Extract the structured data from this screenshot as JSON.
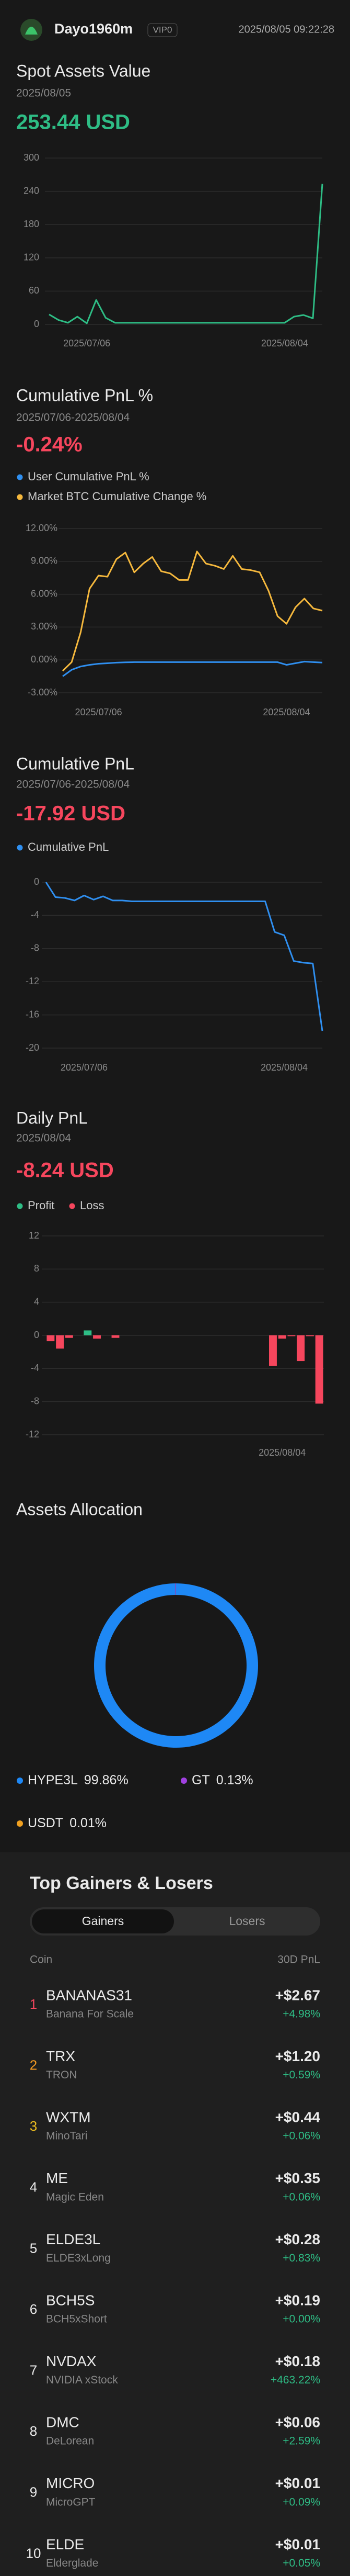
{
  "header": {
    "username": "Dayo1960m",
    "vip": "VIP0",
    "datetime": "2025/08/05 09:22:28"
  },
  "chart_data": [
    {
      "type": "line",
      "title": "Spot Assets Value",
      "subtitle": "2025/08/05",
      "headline": "253.44 USD",
      "headline_color": "#2ebd85",
      "categories": [
        null,
        null,
        null,
        null,
        "2025/07/06",
        null,
        null,
        null,
        null,
        null,
        null,
        null,
        null,
        null,
        null,
        null,
        null,
        null,
        null,
        null,
        null,
        null,
        null,
        null,
        null,
        "2025/08/04",
        null,
        null,
        null,
        null
      ],
      "series": [
        {
          "color": "#2ebd85",
          "values": [
            18,
            8,
            3,
            14,
            2,
            44,
            12,
            3,
            3,
            3,
            3,
            3,
            3,
            3,
            3,
            3,
            3,
            3,
            3,
            3,
            3,
            3,
            3,
            3,
            3,
            3,
            14,
            17,
            11,
            253.44
          ]
        }
      ],
      "ylim": [
        0,
        300
      ],
      "yticks": [
        0,
        60,
        120,
        180,
        240,
        300
      ],
      "grid": true
    },
    {
      "type": "line",
      "title": "Cumulative PnL %",
      "subtitle": "2025/07/06-2025/08/04",
      "headline": "-0.24%",
      "headline_color": "#f6465d",
      "categories": [
        null,
        null,
        null,
        null,
        "2025/07/06",
        null,
        null,
        null,
        null,
        null,
        null,
        null,
        null,
        null,
        null,
        null,
        null,
        null,
        null,
        null,
        null,
        null,
        null,
        null,
        null,
        "2025/08/04",
        null,
        null,
        null,
        null
      ],
      "series": [
        {
          "name": "User Cumulative PnL %",
          "color": "#2f8ff0",
          "values": [
            -1.5,
            -0.9,
            -0.6,
            -0.45,
            -0.35,
            -0.3,
            -0.25,
            -0.22,
            -0.2,
            -0.2,
            -0.2,
            -0.2,
            -0.2,
            -0.2,
            -0.2,
            -0.2,
            -0.2,
            -0.2,
            -0.2,
            -0.2,
            -0.2,
            -0.2,
            -0.2,
            -0.2,
            -0.2,
            -0.45,
            -0.3,
            -0.15,
            -0.2,
            -0.24
          ]
        },
        {
          "name": "Market BTC Cumulative Change %",
          "color": "#f5b83d",
          "values": [
            -1.0,
            -0.2,
            2.5,
            6.5,
            7.7,
            7.6,
            9.2,
            9.8,
            8.0,
            8.8,
            9.4,
            8.1,
            7.9,
            7.3,
            7.3,
            9.9,
            8.8,
            8.6,
            8.3,
            9.5,
            8.3,
            8.2,
            8.0,
            6.3,
            4.0,
            3.3,
            4.8,
            5.6,
            4.7,
            4.5
          ]
        }
      ],
      "ylim": [
        -3,
        12
      ],
      "yticks": [
        {
          "value": 12,
          "label": "12.00%"
        },
        {
          "value": 9,
          "label": "9.00%"
        },
        {
          "value": 6,
          "label": "6.00%"
        },
        {
          "value": 3,
          "label": "3.00%"
        },
        {
          "value": 0,
          "label": "0.00%"
        },
        {
          "value": -3,
          "label": "-3.00%"
        }
      ],
      "grid": true
    },
    {
      "type": "line",
      "title": "Cumulative PnL",
      "subtitle": "2025/07/06-2025/08/04",
      "headline": "-17.92 USD",
      "headline_color": "#f6465d",
      "categories": [
        null,
        null,
        null,
        null,
        "2025/07/06",
        null,
        null,
        null,
        null,
        null,
        null,
        null,
        null,
        null,
        null,
        null,
        null,
        null,
        null,
        null,
        null,
        null,
        null,
        null,
        null,
        "2025/08/04",
        null,
        null,
        null,
        null
      ],
      "series": [
        {
          "name": "Cumulative PnL",
          "color": "#2f8ff0",
          "values": [
            0,
            -1.8,
            -1.9,
            -2.2,
            -1.6,
            -2.1,
            -1.7,
            -2.2,
            -2.2,
            -2.3,
            -2.3,
            -2.3,
            -2.3,
            -2.3,
            -2.3,
            -2.3,
            -2.3,
            -2.3,
            -2.3,
            -2.3,
            -2.3,
            -2.3,
            -2.3,
            -2.3,
            -6.0,
            -6.4,
            -9.5,
            -9.7,
            -9.8,
            -17.92
          ]
        }
      ],
      "ylim": [
        -20,
        0
      ],
      "yticks": [
        0,
        -4,
        -8,
        -12,
        -16,
        -20
      ],
      "grid": true
    },
    {
      "type": "bar",
      "title": "Daily PnL",
      "subtitle": "2025/08/04",
      "headline": "-8.24 USD",
      "headline_color": "#f6465d",
      "categories": [
        null,
        null,
        null,
        null,
        null,
        null,
        null,
        null,
        null,
        null,
        null,
        null,
        null,
        null,
        null,
        null,
        null,
        null,
        null,
        null,
        null,
        null,
        null,
        null,
        null,
        "2025/08/04",
        null,
        null,
        null,
        null
      ],
      "values": [
        -0.7,
        -1.6,
        -0.3,
        0,
        0.6,
        -0.4,
        0,
        -0.3,
        0,
        0,
        0,
        0,
        0,
        0,
        0,
        0,
        0,
        0,
        0,
        0,
        0,
        0,
        0,
        0,
        -3.7,
        -0.4,
        -0.1,
        -3.1,
        -0.1,
        -8.24
      ],
      "legend": [
        {
          "name": "Profit",
          "color": "#2ebd85"
        },
        {
          "name": "Loss",
          "color": "#f6465d"
        }
      ],
      "ylim": [
        -12,
        12
      ],
      "yticks": [
        12,
        8,
        4,
        0,
        -4,
        -8,
        -12
      ],
      "grid": true
    },
    {
      "type": "pie",
      "title": "Assets Allocation",
      "donut": true,
      "categories": [
        "HYPE3L",
        "GT",
        "USDT"
      ],
      "values": [
        99.86,
        0.13,
        0.01
      ],
      "value_labels": [
        "99.86%",
        "0.13%",
        "0.01%"
      ],
      "colors": [
        "#1e88f5",
        "#a040e0",
        "#f0a020"
      ]
    }
  ],
  "top_gainers_losers": {
    "title": "Top Gainers & Losers",
    "tabs": [
      "Gainers",
      "Losers"
    ],
    "columns": [
      "Coin",
      "30D PnL"
    ],
    "rows": [
      {
        "rank": "1",
        "symbol": "BANANAS31",
        "name": "Banana For Scale",
        "pnl": "+$2.67",
        "change": "+4.98%"
      },
      {
        "rank": "2",
        "symbol": "TRX",
        "name": "TRON",
        "pnl": "+$1.20",
        "change": "+0.59%"
      },
      {
        "rank": "3",
        "symbol": "WXTM",
        "name": "MinoTari",
        "pnl": "+$0.44",
        "change": "+0.06%"
      },
      {
        "rank": "4",
        "symbol": "ME",
        "name": "Magic Eden",
        "pnl": "+$0.35",
        "change": "+0.06%"
      },
      {
        "rank": "5",
        "symbol": "ELDE3L",
        "name": "ELDE3xLong",
        "pnl": "+$0.28",
        "change": "+0.83%"
      },
      {
        "rank": "6",
        "symbol": "BCH5S",
        "name": "BCH5xShort",
        "pnl": "+$0.19",
        "change": "+0.00%"
      },
      {
        "rank": "7",
        "symbol": "NVDAX",
        "name": "NVIDIA xStock",
        "pnl": "+$0.18",
        "change": "+463.22%"
      },
      {
        "rank": "8",
        "symbol": "DMC",
        "name": "DeLorean",
        "pnl": "+$0.06",
        "change": "+2.59%"
      },
      {
        "rank": "9",
        "symbol": "MICRO",
        "name": "MicroGPT",
        "pnl": "+$0.01",
        "change": "+0.09%"
      },
      {
        "rank": "10",
        "symbol": "ELDE",
        "name": "Elderglade",
        "pnl": "+$0.01",
        "change": "+0.05%"
      }
    ]
  }
}
